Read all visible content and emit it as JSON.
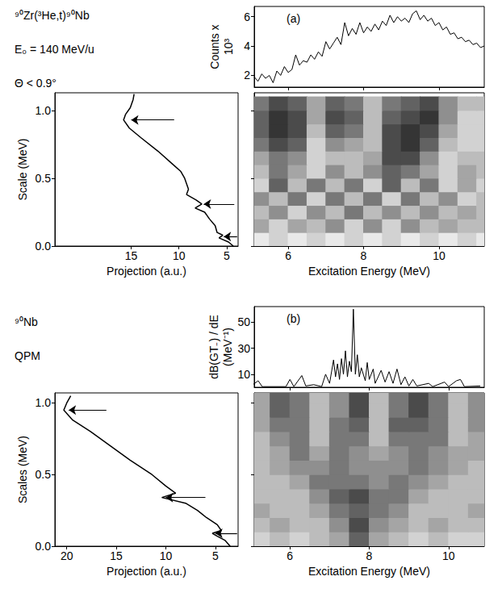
{
  "chart_data": [
    {
      "type": "line",
      "title": "(a)",
      "annotations": [
        "⁹⁰Zr(³He,t)⁹⁰Nb",
        "E₀ = 140 MeV/u",
        "Θ < 0.9°"
      ],
      "ylabel": "Counts x 10³",
      "color": "#000000",
      "tick_labels": "y",
      "x": [
        5.1,
        5.2,
        5.3,
        5.4,
        5.5,
        5.6,
        5.7,
        5.8,
        5.9,
        6.0,
        6.1,
        6.2,
        6.3,
        6.4,
        6.5,
        6.6,
        6.7,
        6.8,
        6.9,
        7.0,
        7.1,
        7.2,
        7.3,
        7.4,
        7.5,
        7.6,
        7.7,
        7.8,
        7.9,
        8.0,
        8.1,
        8.2,
        8.3,
        8.4,
        8.5,
        8.6,
        8.7,
        8.8,
        8.9,
        9.0,
        9.1,
        9.2,
        9.3,
        9.4,
        9.5,
        9.6,
        9.7,
        9.8,
        9.9,
        10.0,
        10.1,
        10.2,
        10.3,
        10.4,
        10.5,
        10.6,
        10.7,
        10.8,
        10.9,
        11.0,
        11.1,
        11.2
      ],
      "y": [
        1.9,
        1.6,
        2.1,
        1.8,
        2.0,
        1.5,
        2.3,
        2.0,
        2.6,
        2.2,
        2.4,
        3.4,
        2.7,
        3.0,
        2.9,
        3.4,
        3.1,
        3.6,
        3.3,
        4.3,
        3.8,
        4.2,
        4.6,
        4.1,
        5.6,
        4.7,
        5.2,
        4.8,
        5.6,
        4.9,
        5.3,
        5.0,
        5.5,
        5.1,
        5.7,
        5.4,
        6.1,
        5.6,
        6.0,
        5.7,
        5.9,
        5.6,
        6.2,
        6.4,
        5.8,
        6.1,
        5.7,
        5.9,
        5.4,
        5.6,
        5.1,
        5.3,
        4.8,
        4.9,
        4.5,
        4.6,
        4.3,
        4.4,
        4.1,
        4.2,
        3.9,
        4.0
      ],
      "xlim": [
        5.1,
        11.2
      ],
      "xticks": [
        6,
        8,
        10
      ],
      "ylim": [
        1.2,
        6.7
      ],
      "yticks": [
        2,
        4,
        6
      ]
    },
    {
      "type": "line",
      "xlabel": "Projection (a.u.)",
      "ylabel": "Scale (MeV)",
      "color": "#000000",
      "x": [
        4.3,
        4.8,
        5.8,
        5.4,
        6.0,
        6.2,
        6.8,
        7.3,
        8.3,
        7.6,
        8.2,
        9.2,
        9.0,
        9.4,
        9.8,
        10.6,
        12.2,
        14.0,
        15.2,
        15.8,
        15.6,
        15.1,
        14.8,
        14.7
      ],
      "y": [
        0.0,
        0.03,
        0.06,
        0.08,
        0.1,
        0.15,
        0.2,
        0.25,
        0.28,
        0.31,
        0.34,
        0.38,
        0.42,
        0.5,
        0.55,
        0.6,
        0.7,
        0.8,
        0.87,
        0.93,
        0.97,
        1.02,
        1.08,
        1.12
      ],
      "arrows": [
        {
          "y": 0.93,
          "from": 10.5,
          "to": 15.0
        },
        {
          "y": 0.31,
          "from": 4.2,
          "to": 7.4
        },
        {
          "y": 0.07,
          "from": 3.9,
          "to": 5.3
        }
      ],
      "xlim": [
        23,
        3.8
      ],
      "xticks": [
        15,
        10,
        5
      ],
      "ylim": [
        0,
        1.13
      ],
      "yticks": [
        {
          "value": 0,
          "label": "0.0"
        },
        0.5,
        {
          "value": 1,
          "label": "1.0"
        }
      ]
    },
    {
      "type": "heatmap",
      "xlabel": "Excitation Energy (MeV)",
      "color": "#000000",
      "tick_labels": "x",
      "x": [
        5.25,
        5.75,
        6.25,
        6.75,
        7.25,
        7.75,
        8.25,
        8.75,
        9.25,
        9.75,
        10.25,
        10.75,
        11.25
      ],
      "y": [
        0.05,
        0.15,
        0.25,
        0.35,
        0.45,
        0.55,
        0.65,
        0.75,
        0.85,
        0.95,
        1.05
      ],
      "values": [
        [
          1,
          2,
          1,
          2,
          1,
          2,
          1,
          2,
          1,
          2,
          1,
          2,
          1
        ],
        [
          4,
          2,
          4,
          3,
          5,
          2,
          5,
          2,
          5,
          3,
          4,
          3,
          3
        ],
        [
          3,
          5,
          2,
          5,
          3,
          6,
          3,
          5,
          3,
          5,
          3,
          4,
          3
        ],
        [
          5,
          3,
          6,
          2,
          6,
          3,
          6,
          2,
          6,
          3,
          5,
          2,
          3
        ],
        [
          2,
          7,
          3,
          6,
          3,
          6,
          2,
          7,
          3,
          6,
          2,
          4,
          2
        ],
        [
          3,
          6,
          4,
          2,
          5,
          3,
          5,
          7,
          6,
          4,
          2,
          4,
          3
        ],
        [
          4,
          6,
          5,
          2,
          3,
          3,
          4,
          8,
          8,
          5,
          2,
          3,
          3
        ],
        [
          6,
          8,
          7,
          2,
          5,
          4,
          3,
          8,
          9,
          7,
          3,
          2,
          2
        ],
        [
          7,
          9,
          8,
          3,
          7,
          6,
          3,
          8,
          9,
          8,
          4,
          2,
          2
        ],
        [
          7,
          9,
          8,
          4,
          8,
          7,
          3,
          7,
          8,
          9,
          5,
          2,
          2
        ],
        [
          6,
          8,
          7,
          4,
          7,
          6,
          3,
          6,
          7,
          8,
          5,
          3,
          3
        ]
      ],
      "zlim": [
        0,
        10
      ],
      "xlim": [
        5.1,
        11.2
      ],
      "xticks": [
        6,
        8,
        10
      ],
      "ylim": [
        0,
        1.13
      ],
      "yticks": [
        {
          "value": 0,
          "label": "0.0"
        },
        0.5,
        {
          "value": 1,
          "label": "1.0"
        }
      ]
    },
    {
      "type": "line",
      "title": "(b)",
      "annotations": [
        "⁹⁰Nb",
        "QPM"
      ],
      "ylabel": "dB(GT₋) / dE (MeV⁻¹)",
      "color": "#000000",
      "tick_labels": "y",
      "x": [
        5.0,
        5.2,
        5.3,
        5.9,
        6.0,
        6.1,
        6.3,
        6.4,
        6.6,
        6.8,
        6.9,
        7.0,
        7.1,
        7.15,
        7.2,
        7.25,
        7.3,
        7.35,
        7.4,
        7.45,
        7.5,
        7.55,
        7.6,
        7.65,
        7.7,
        7.75,
        7.8,
        7.9,
        7.95,
        8.0,
        8.1,
        8.15,
        8.3,
        8.4,
        8.5,
        8.6,
        8.7,
        8.8,
        8.9,
        9.0,
        9.1,
        9.2,
        9.5,
        9.6,
        9.9,
        10.0,
        10.2,
        10.3,
        10.4,
        10.8
      ],
      "y": [
        0.5,
        5,
        0.5,
        0.5,
        6,
        0.5,
        9,
        1,
        2,
        0.5,
        10,
        3,
        21,
        8,
        18,
        6,
        22,
        10,
        28,
        8,
        20,
        12,
        60,
        10,
        25,
        8,
        15,
        5,
        19,
        6,
        14,
        3,
        13,
        4,
        12,
        3,
        14,
        2,
        8,
        1,
        6,
        1,
        3,
        0.5,
        4,
        0.5,
        5,
        6,
        0.5,
        1
      ],
      "xlim": [
        5.1,
        10.9
      ],
      "xticks": [
        6,
        8,
        10
      ],
      "ylim": [
        0,
        62
      ],
      "yticks": [
        10,
        30,
        50
      ]
    },
    {
      "type": "line",
      "xlabel": "Projection (a.u.)",
      "ylabel": "Scales (MeV)",
      "color": "#000000",
      "x": [
        3.5,
        4.0,
        4.8,
        5.3,
        4.4,
        4.8,
        5.9,
        6.8,
        8.0,
        10.4,
        9.0,
        10.0,
        11.4,
        13.6,
        15.6,
        17.6,
        19.4,
        20.3,
        20.0,
        19.6
      ],
      "y": [
        0.0,
        0.04,
        0.07,
        0.09,
        0.11,
        0.15,
        0.2,
        0.25,
        0.3,
        0.34,
        0.37,
        0.42,
        0.5,
        0.6,
        0.7,
        0.8,
        0.88,
        0.95,
        1.0,
        1.05
      ],
      "arrows": [
        {
          "y": 0.95,
          "from": 16.0,
          "to": 19.8
        },
        {
          "y": 0.34,
          "from": 6.0,
          "to": 10.0
        },
        {
          "y": 0.09,
          "from": 2.8,
          "to": 5.0
        }
      ],
      "xlim": [
        21.2,
        2.7
      ],
      "xticks": [
        20,
        15,
        10,
        5
      ],
      "ylim": [
        0,
        1.07
      ],
      "yticks": [
        {
          "value": 0,
          "label": "0.0"
        },
        0.5,
        {
          "value": 1,
          "label": "1.0"
        }
      ]
    },
    {
      "type": "heatmap",
      "xlabel": "Excitation Energy (MeV)",
      "color": "#000000",
      "tick_labels": "x",
      "x": [
        5.25,
        5.75,
        6.25,
        6.75,
        7.25,
        7.75,
        8.25,
        8.75,
        9.25,
        9.75,
        10.25,
        10.75,
        11.25
      ],
      "y": [
        0.05,
        0.15,
        0.25,
        0.35,
        0.45,
        0.55,
        0.65,
        0.75,
        0.85,
        0.95,
        1.05
      ],
      "values": [
        [
          2,
          3,
          2,
          3,
          4,
          7,
          4,
          3,
          2,
          3,
          2,
          2,
          2
        ],
        [
          3,
          4,
          3,
          3,
          5,
          8,
          5,
          4,
          3,
          4,
          3,
          3,
          3
        ],
        [
          4,
          3,
          3,
          4,
          6,
          7,
          6,
          5,
          3,
          3,
          3,
          4,
          4
        ],
        [
          3,
          3,
          3,
          5,
          7,
          8,
          6,
          6,
          4,
          3,
          3,
          3,
          3
        ],
        [
          3,
          3,
          4,
          6,
          6,
          6,
          5,
          6,
          5,
          4,
          3,
          3,
          3
        ],
        [
          3,
          4,
          5,
          5,
          6,
          5,
          5,
          5,
          6,
          5,
          4,
          3,
          3
        ],
        [
          3,
          4,
          6,
          4,
          6,
          5,
          4,
          5,
          6,
          5,
          4,
          4,
          3
        ],
        [
          3,
          5,
          6,
          3,
          6,
          6,
          3,
          6,
          6,
          6,
          3,
          4,
          3
        ],
        [
          4,
          6,
          6,
          3,
          6,
          7,
          3,
          7,
          7,
          6,
          3,
          5,
          4
        ],
        [
          4,
          7,
          6,
          3,
          5,
          8,
          3,
          6,
          8,
          6,
          3,
          5,
          4
        ],
        [
          4,
          7,
          6,
          3,
          5,
          8,
          3,
          6,
          8,
          6,
          3,
          5,
          4
        ]
      ],
      "zlim": [
        0,
        10
      ],
      "xlim": [
        5.1,
        10.9
      ],
      "xticks": [
        6,
        8,
        10
      ],
      "ylim": [
        0,
        1.07
      ],
      "yticks": [
        {
          "value": 0,
          "label": "0.0"
        },
        0.5,
        {
          "value": 1,
          "label": "1.0"
        }
      ]
    }
  ]
}
